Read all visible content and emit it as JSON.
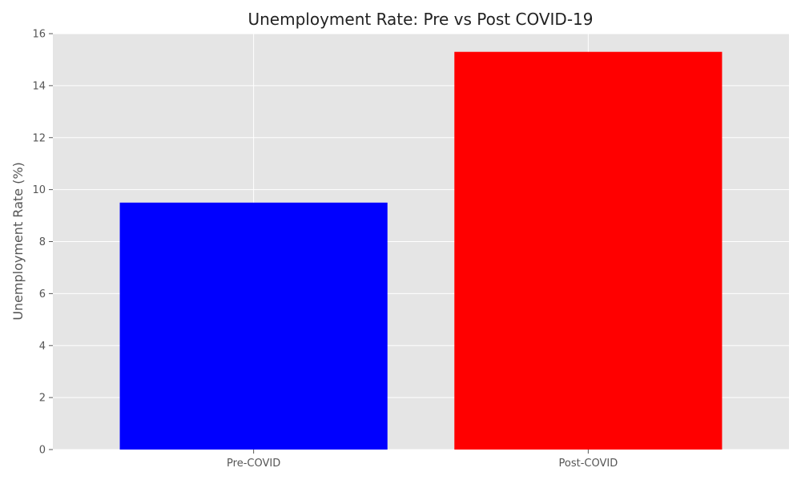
{
  "chart_data": {
    "type": "bar",
    "title": "Unemployment Rate: Pre vs Post COVID-19",
    "xlabel": "",
    "ylabel": "Unemployment Rate (%)",
    "categories": [
      "Pre-COVID",
      "Post-COVID"
    ],
    "values": [
      9.5,
      15.3
    ],
    "colors": [
      "#0000ff",
      "#ff0000"
    ],
    "ylim": [
      0,
      16
    ],
    "yticks": [
      0,
      2,
      4,
      6,
      8,
      10,
      12,
      14,
      16
    ],
    "ytick_labels": [
      "0",
      "2",
      "4",
      "6",
      "8",
      "10",
      "12",
      "14",
      "16"
    ],
    "grid": true,
    "background_color": "#e5e5e5",
    "grid_color": "#ffffff"
  }
}
